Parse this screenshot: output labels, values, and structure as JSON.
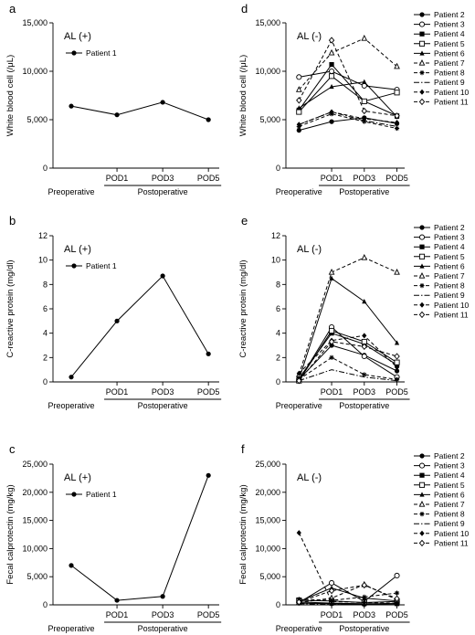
{
  "timepoints": [
    "Preoperative",
    "POD1",
    "POD3",
    "POD5"
  ],
  "group_label": "Postoperative",
  "marker_styles": {
    "Patient 1": "filled-circle",
    "Patient 2": "filled-circle",
    "Patient 3": "open-circle",
    "Patient 4": "filled-square",
    "Patient 5": "open-square",
    "Patient 6": "filled-triangle",
    "Patient 7": "open-triangle",
    "Patient 8": "star",
    "Patient 9": "none",
    "Patient 10": "filled-diamond",
    "Patient 11": "open-diamond"
  },
  "dash_styles": {
    "Patient 1": "solid",
    "Patient 2": "solid",
    "Patient 3": "solid",
    "Patient 4": "solid",
    "Patient 5": "solid",
    "Patient 6": "solid",
    "Patient 7": "dashed",
    "Patient 8": "dashed",
    "Patient 9": "dashdot",
    "Patient 10": "dashed",
    "Patient 11": "dashed"
  },
  "chart_data": [
    {
      "panel": "a",
      "type": "line",
      "title": "AL (+)",
      "ylabel": "White blood cell (/μL)",
      "yticks": [
        "0",
        "5,000",
        "10,000",
        "15,000"
      ],
      "ylim": [
        0,
        15000
      ],
      "categories": [
        "Preoperative",
        "POD1",
        "POD3",
        "POD5"
      ],
      "legend": "top-left",
      "series": [
        {
          "name": "Patient 1",
          "values": [
            6400,
            5500,
            6800,
            5000
          ]
        }
      ]
    },
    {
      "panel": "d",
      "type": "line",
      "title": "AL (-)",
      "ylabel": "White blood cell (/μL)",
      "yticks": [
        "0",
        "5,000",
        "10,000",
        "15,000"
      ],
      "ylim": [
        0,
        15000
      ],
      "categories": [
        "Preoperative",
        "POD1",
        "POD3",
        "POD5"
      ],
      "legend": "right",
      "series": [
        {
          "name": "Patient 2",
          "values": [
            3900,
            4800,
            5200,
            4600
          ]
        },
        {
          "name": "Patient 3",
          "values": [
            9400,
            10000,
            8500,
            8100
          ]
        },
        {
          "name": "Patient 4",
          "values": [
            6000,
            10700,
            6900,
            5400
          ]
        },
        {
          "name": "Patient 5",
          "values": [
            5800,
            9500,
            6900,
            7800
          ]
        },
        {
          "name": "Patient 6",
          "values": [
            6200,
            8400,
            8900,
            5300
          ]
        },
        {
          "name": "Patient 7",
          "values": [
            8100,
            11900,
            13400,
            10500
          ]
        },
        {
          "name": "Patient 8",
          "values": [
            4300,
            5600,
            4800,
            4100
          ]
        },
        {
          "name": "Patient 9",
          "values": [
            4500,
            5800,
            4900,
            4300
          ]
        },
        {
          "name": "Patient 10",
          "values": [
            4500,
            5800,
            5100,
            4700
          ]
        },
        {
          "name": "Patient 11",
          "values": [
            7000,
            13200,
            5900,
            5400
          ]
        }
      ]
    },
    {
      "panel": "b",
      "type": "line",
      "title": "AL (+)",
      "ylabel": "C-reactive protein (mg/dl)",
      "yticks": [
        "0",
        "2",
        "4",
        "6",
        "8",
        "10",
        "12"
      ],
      "ylim": [
        0,
        12
      ],
      "categories": [
        "Preoperative",
        "POD1",
        "POD3",
        "POD5"
      ],
      "legend": "top-left",
      "series": [
        {
          "name": "Patient 1",
          "values": [
            0.4,
            5.0,
            8.7,
            2.3
          ]
        }
      ]
    },
    {
      "panel": "e",
      "type": "line",
      "title": "AL (-)",
      "ylabel": "C-reactive protein (mg/dl)",
      "yticks": [
        "0",
        "2",
        "4",
        "6",
        "8",
        "10",
        "12"
      ],
      "ylim": [
        0,
        12
      ],
      "categories": [
        "Preoperative",
        "POD1",
        "POD3",
        "POD5"
      ],
      "legend": "right",
      "series": [
        {
          "name": "Patient 2",
          "values": [
            0.2,
            3.0,
            2.2,
            0.9
          ]
        },
        {
          "name": "Patient 3",
          "values": [
            0.1,
            4.5,
            2.1,
            0.4
          ]
        },
        {
          "name": "Patient 4",
          "values": [
            0.3,
            4.0,
            3.1,
            1.4
          ]
        },
        {
          "name": "Patient 5",
          "values": [
            0.1,
            4.2,
            3.3,
            1.6
          ]
        },
        {
          "name": "Patient 6",
          "values": [
            0.2,
            8.5,
            6.6,
            3.2
          ]
        },
        {
          "name": "Patient 7",
          "values": [
            0.6,
            9.0,
            10.2,
            9.0
          ]
        },
        {
          "name": "Patient 8",
          "values": [
            0.2,
            2.0,
            0.6,
            0.2
          ]
        },
        {
          "name": "Patient 9",
          "values": [
            0.1,
            1.0,
            0.4,
            0.1
          ]
        },
        {
          "name": "Patient 10",
          "values": [
            0.7,
            3.4,
            3.8,
            1.2
          ]
        },
        {
          "name": "Patient 11",
          "values": [
            0.1,
            3.3,
            2.9,
            2.1
          ]
        }
      ]
    },
    {
      "panel": "c",
      "type": "line",
      "title": "AL (+)",
      "ylabel": "Fecal calprotectin (mg/kg)",
      "yticks": [
        "0",
        "5,000",
        "10,000",
        "15,000",
        "20,000",
        "25,000"
      ],
      "ylim": [
        0,
        25000
      ],
      "categories": [
        "Preoperative",
        "POD1",
        "POD3",
        "POD5"
      ],
      "legend": "top-left",
      "series": [
        {
          "name": "Patient 1",
          "values": [
            7000,
            800,
            1500,
            23000
          ]
        }
      ]
    },
    {
      "panel": "f",
      "type": "line",
      "title": "AL (-)",
      "ylabel": "Fecal calprotectin (mg/kg)",
      "yticks": [
        "0",
        "5,000",
        "10,000",
        "15,000",
        "20,000",
        "25,000"
      ],
      "ylim": [
        0,
        25000
      ],
      "categories": [
        "Preoperative",
        "POD1",
        "POD3",
        "POD5"
      ],
      "legend": "right",
      "series": [
        {
          "name": "Patient 2",
          "values": [
            300,
            200,
            100,
            200
          ]
        },
        {
          "name": "Patient 3",
          "values": [
            400,
            3900,
            600,
            5200
          ]
        },
        {
          "name": "Patient 4",
          "values": [
            500,
            300,
            200,
            200
          ]
        },
        {
          "name": "Patient 5",
          "values": [
            800,
            700,
            400,
            600
          ]
        },
        {
          "name": "Patient 6",
          "values": [
            600,
            3000,
            1200,
            700
          ]
        },
        {
          "name": "Patient 7",
          "values": [
            400,
            1200,
            3600,
            900
          ]
        },
        {
          "name": "Patient 8",
          "values": [
            1000,
            800,
            1400,
            2100
          ]
        },
        {
          "name": "Patient 9",
          "values": [
            200,
            100,
            100,
            300
          ]
        },
        {
          "name": "Patient 10",
          "values": [
            12800,
            600,
            400,
            300
          ]
        },
        {
          "name": "Patient 11",
          "values": [
            500,
            2500,
            3500,
            1100
          ]
        }
      ]
    }
  ]
}
